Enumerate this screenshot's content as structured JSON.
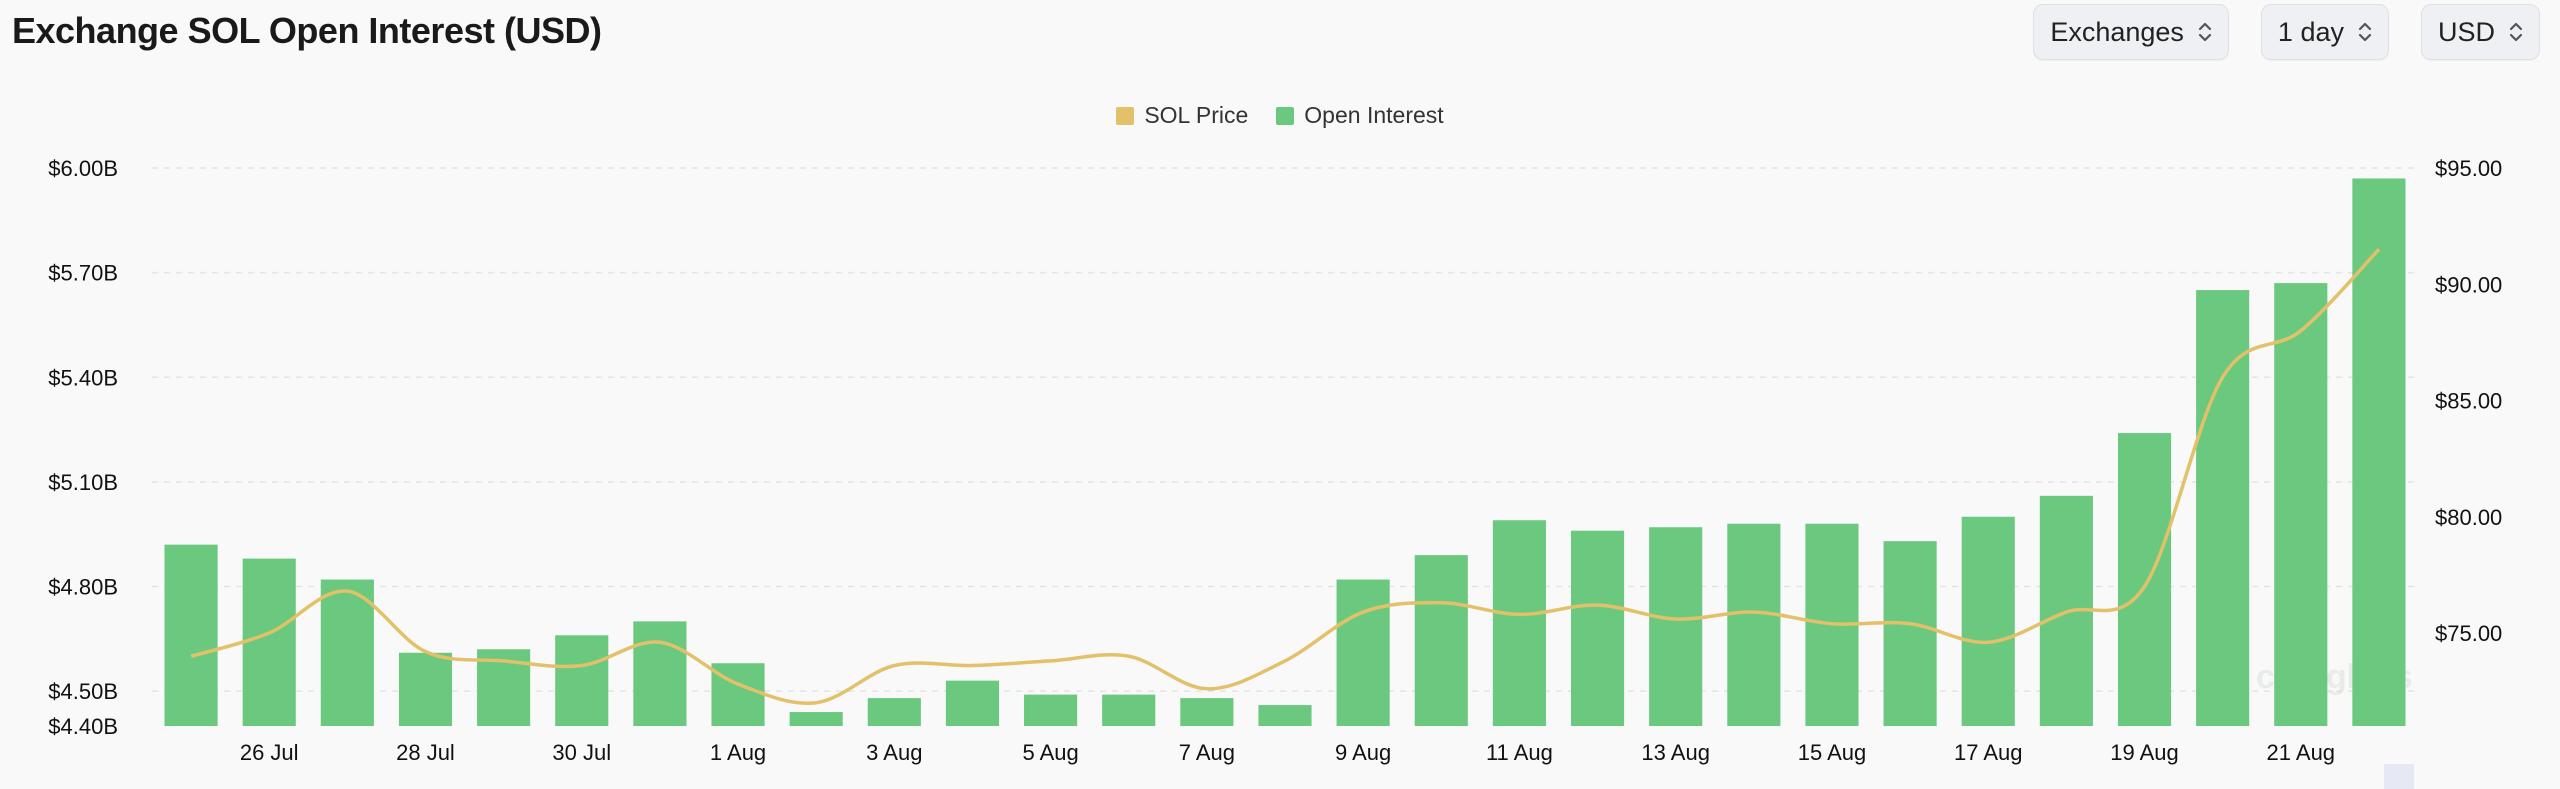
{
  "header": {
    "title": "Exchange SOL Open Interest (USD)",
    "selects": [
      {
        "label": "Exchanges"
      },
      {
        "label": "1 day"
      },
      {
        "label": "USD"
      }
    ]
  },
  "colors": {
    "open_interest": "#6bc97f",
    "sol_price": "#e3c06a",
    "grid": "#e4e4e4"
  },
  "chart_data": {
    "type": "bar",
    "legend_position": "top-center",
    "legend": [
      {
        "name": "SOL Price",
        "color": "#e3c06a"
      },
      {
        "name": "Open Interest",
        "color": "#6bc97f"
      }
    ],
    "x": [
      "25 Jul",
      "26 Jul",
      "27 Jul",
      "28 Jul",
      "29 Jul",
      "30 Jul",
      "31 Jul",
      "1 Aug",
      "2 Aug",
      "3 Aug",
      "4 Aug",
      "5 Aug",
      "6 Aug",
      "7 Aug",
      "8 Aug",
      "9 Aug",
      "10 Aug",
      "11 Aug",
      "12 Aug",
      "13 Aug",
      "14 Aug",
      "15 Aug",
      "16 Aug",
      "17 Aug",
      "18 Aug",
      "19 Aug",
      "20 Aug",
      "21 Aug",
      "22 Aug"
    ],
    "x_tick_labels": [
      "26 Jul",
      "28 Jul",
      "30 Jul",
      "1 Aug",
      "3 Aug",
      "5 Aug",
      "7 Aug",
      "9 Aug",
      "11 Aug",
      "13 Aug",
      "15 Aug",
      "17 Aug",
      "19 Aug",
      "21 Aug"
    ],
    "series": [
      {
        "name": "Open Interest",
        "type": "bar",
        "axis": "left",
        "values": [
          4.92,
          4.88,
          4.82,
          4.61,
          4.62,
          4.66,
          4.7,
          4.58,
          4.44,
          4.48,
          4.53,
          4.49,
          4.49,
          4.48,
          4.46,
          4.82,
          4.89,
          4.99,
          4.96,
          4.97,
          4.98,
          4.98,
          4.93,
          5.0,
          5.06,
          5.24,
          5.65,
          5.67,
          5.97
        ]
      },
      {
        "name": "SOL Price",
        "type": "line",
        "axis": "right",
        "values": [
          74.0,
          75.0,
          76.8,
          74.2,
          73.8,
          73.6,
          74.6,
          72.8,
          72.0,
          73.6,
          73.6,
          73.8,
          74.0,
          72.6,
          73.8,
          75.9,
          76.3,
          75.8,
          76.2,
          75.6,
          75.9,
          75.4,
          75.4,
          74.6,
          75.9,
          77.0,
          86.0,
          88.0,
          91.5
        ]
      }
    ],
    "y_left": {
      "ylim": [
        4.4,
        6.0
      ],
      "ticks": [
        "$4.40B",
        "$4.50B",
        "$4.80B",
        "$5.10B",
        "$5.40B",
        "$5.70B",
        "$6.00B"
      ]
    },
    "y_right": {
      "ylim": [
        71.0,
        95.0
      ],
      "ticks": [
        "$75.00",
        "$80.00",
        "$85.00",
        "$90.00",
        "$95.00"
      ]
    },
    "grid": true,
    "watermark": "coinglass"
  }
}
